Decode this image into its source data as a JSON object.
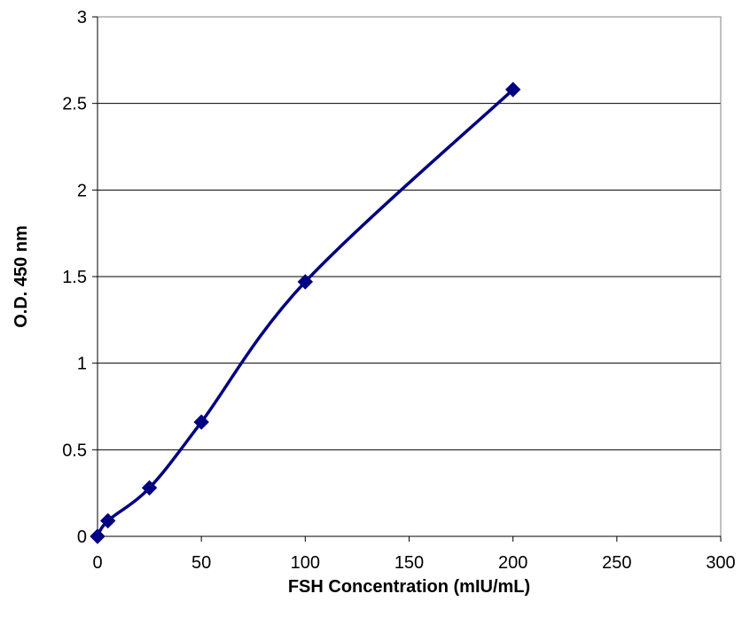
{
  "chart_data": {
    "type": "line",
    "title": "",
    "xlabel": "FSH Concentration (mIU/mL)",
    "ylabel": "O.D. 450 nm",
    "xlim": [
      0,
      300
    ],
    "ylim": [
      0,
      3
    ],
    "x_ticks": [
      "0",
      "50",
      "100",
      "150",
      "200",
      "250",
      "300"
    ],
    "y_ticks": [
      "0",
      "0.5",
      "1",
      "1.5",
      "2",
      "2.5",
      "3"
    ],
    "grid": {
      "horizontal": true,
      "vertical": false
    },
    "legend": "none",
    "marker": "diamond",
    "line_style": "smoothed",
    "series_color": "#000080",
    "series": [
      {
        "points": [
          {
            "x": 0,
            "y": 0.0
          },
          {
            "x": 5,
            "y": 0.09
          },
          {
            "x": 25,
            "y": 0.28
          },
          {
            "x": 50,
            "y": 0.66
          },
          {
            "x": 100,
            "y": 1.47
          },
          {
            "x": 200,
            "y": 2.58
          }
        ]
      }
    ]
  }
}
